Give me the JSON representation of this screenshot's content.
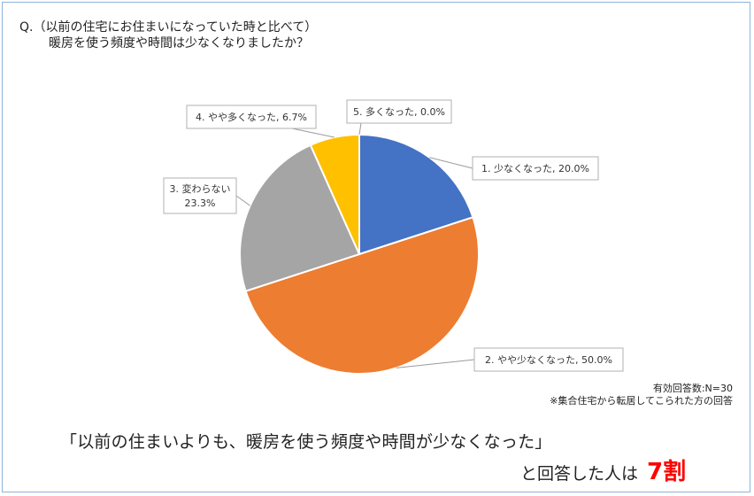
{
  "question": {
    "line1": "Q.（以前の住宅にお住まいになっていた時と比べて）",
    "line2": "暖房を使う頻度や時間は少なくなりましたか？"
  },
  "chart_data": {
    "type": "pie",
    "title": "",
    "slices": [
      {
        "name": "1. 少なくなった",
        "value": 20.0,
        "color": "#4472C4",
        "label": "1. 少なくなった, 20.0%"
      },
      {
        "name": "2. やや少なくなった",
        "value": 50.0,
        "color": "#ED7D31",
        "label": "2. やや少なくなった, 50.0%"
      },
      {
        "name": "3. 変わらない",
        "value": 23.3,
        "color": "#A5A5A5",
        "label_line1": "3. 変わらない",
        "label_line2": "23.3%"
      },
      {
        "name": "4. やや多くなった",
        "value": 6.7,
        "color": "#FFC000",
        "label": "4. やや多くなった, 6.7%"
      },
      {
        "name": "5. 多くなった",
        "value": 0.0,
        "color": "#5B9BD5",
        "label": "5. 多くなった, 0.0%"
      }
    ]
  },
  "notes": {
    "n": "有効回答数:N=30",
    "scope": "※集合住宅から転居してこられた方の回答"
  },
  "summary": {
    "quote": "「以前の住まいよりも、暖房を使う頻度や時間が少なくなった」",
    "answer_prefix": "と回答した人は",
    "answer_value": "7割"
  }
}
